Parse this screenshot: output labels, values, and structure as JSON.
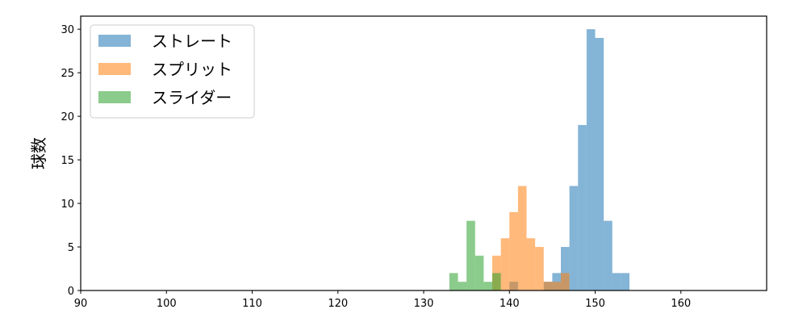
{
  "chart_data": {
    "type": "bar",
    "title": "",
    "xlabel": "",
    "ylabel": "球数",
    "xlim": [
      90,
      170
    ],
    "ylim": [
      0,
      31.5
    ],
    "xticks": [
      90,
      100,
      110,
      120,
      130,
      140,
      150,
      160
    ],
    "yticks": [
      0,
      5,
      10,
      15,
      20,
      25,
      30
    ],
    "grid": false,
    "legend_position": "top-left",
    "bin_width": 1,
    "series": [
      {
        "name": "ストレート",
        "color": "#1f77b4",
        "bins": [
          140,
          144,
          145,
          146,
          147,
          148,
          149,
          150,
          151,
          152,
          153
        ],
        "values": [
          1,
          1,
          2,
          5,
          12,
          19,
          30,
          29,
          8,
          2,
          2
        ]
      },
      {
        "name": "スプリット",
        "color": "#ff7f0e",
        "bins": [
          138,
          139,
          140,
          141,
          142,
          143,
          144,
          145,
          146
        ],
        "values": [
          4,
          6,
          9,
          12,
          6,
          5,
          1,
          1,
          2
        ]
      },
      {
        "name": "スライダー",
        "color": "#2ca02c",
        "bins": [
          133,
          134,
          135,
          136,
          137,
          138
        ],
        "values": [
          2,
          1,
          8,
          4,
          1,
          2
        ]
      }
    ]
  }
}
